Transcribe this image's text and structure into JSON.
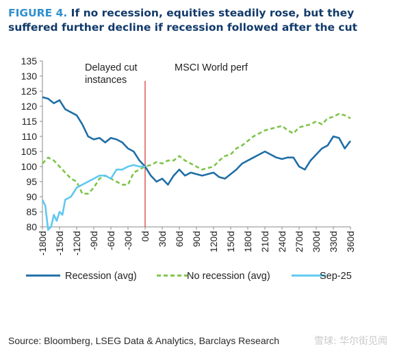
{
  "figure": {
    "label": "FIGURE 4.",
    "title": "If no recession, equities steadily rose, but they suffered further decline if recession followed after the cut"
  },
  "source": "Source: Bloomberg, LSEG Data & Analytics, Barclays Research",
  "watermark": "雪球: 华尔街见闻",
  "colors": {
    "recession": "#1f6ea6",
    "no_recession": "#7cc447",
    "sep25": "#5ec8f0",
    "cut_line": "#d62b2b"
  },
  "chart_data": {
    "type": "line",
    "title": "MSCI World perf",
    "annotation": "Delayed cut instances",
    "xlabel": "",
    "ylabel": "",
    "xlim": [
      -180,
      360
    ],
    "ylim": [
      80,
      135
    ],
    "yticks": [
      80,
      85,
      90,
      95,
      100,
      105,
      110,
      115,
      120,
      125,
      130,
      135
    ],
    "xticks": [
      -180,
      -150,
      -120,
      -90,
      -60,
      -30,
      0,
      30,
      60,
      90,
      120,
      150,
      180,
      210,
      240,
      270,
      300,
      330,
      360
    ],
    "xtick_labels": [
      "-180d",
      "-150d",
      "-120d",
      "-90d",
      "-60d",
      "-30d",
      "0d",
      "30d",
      "60d",
      "90d",
      "120d",
      "150d",
      "180d",
      "210d",
      "240d",
      "270d",
      "300d",
      "330d",
      "360d"
    ],
    "vline_x": 0,
    "grid": false,
    "legend": "bottom",
    "series": [
      {
        "name": "Recession (avg)",
        "style": "solid",
        "color": "#1f6ea6",
        "x": [
          -180,
          -170,
          -160,
          -150,
          -140,
          -130,
          -120,
          -110,
          -100,
          -90,
          -80,
          -70,
          -60,
          -50,
          -40,
          -30,
          -20,
          -10,
          0,
          10,
          20,
          30,
          40,
          50,
          60,
          70,
          80,
          90,
          100,
          110,
          120,
          130,
          140,
          150,
          160,
          170,
          180,
          190,
          200,
          210,
          220,
          230,
          240,
          250,
          260,
          270,
          280,
          290,
          300,
          310,
          320,
          330,
          340,
          350,
          360
        ],
        "y": [
          123,
          122.5,
          121,
          122,
          119,
          118,
          117,
          114,
          110,
          109,
          109.5,
          108,
          109.5,
          109,
          108,
          106,
          105,
          102,
          100,
          97,
          95,
          96,
          94,
          97,
          99,
          97,
          98,
          97.5,
          97,
          97.5,
          98,
          96.5,
          96,
          97.5,
          99,
          101,
          102,
          103,
          104,
          105,
          104,
          103,
          102.5,
          103,
          103,
          100,
          99,
          102,
          104,
          106,
          107,
          110,
          109.5,
          106,
          108.5
        ]
      },
      {
        "name": "No recession (avg)",
        "style": "dashed",
        "color": "#7cc447",
        "x": [
          -180,
          -170,
          -160,
          -150,
          -140,
          -130,
          -120,
          -110,
          -100,
          -90,
          -80,
          -70,
          -60,
          -50,
          -40,
          -30,
          -20,
          -10,
          0,
          10,
          20,
          30,
          40,
          50,
          60,
          70,
          80,
          90,
          100,
          110,
          120,
          130,
          140,
          150,
          160,
          170,
          180,
          190,
          200,
          210,
          220,
          230,
          240,
          250,
          260,
          270,
          280,
          290,
          300,
          310,
          320,
          330,
          340,
          350,
          360
        ],
        "y": [
          101,
          103,
          102,
          100,
          98,
          96,
          95,
          91,
          91,
          93,
          96,
          97,
          96,
          95,
          94,
          94,
          98,
          99,
          100,
          100.5,
          101.5,
          101,
          102,
          102,
          103.5,
          102,
          101,
          100,
          99,
          99.5,
          100,
          102,
          103.5,
          104,
          106,
          107,
          108.5,
          110,
          111,
          112,
          112.5,
          113,
          113.5,
          112,
          111,
          113,
          113.5,
          114,
          115,
          114,
          116,
          116.5,
          117.5,
          117,
          116
        ]
      },
      {
        "name": "Sep-25",
        "style": "solid",
        "color": "#5ec8f0",
        "x": [
          -180,
          -175,
          -170,
          -165,
          -160,
          -155,
          -150,
          -145,
          -140,
          -130,
          -120,
          -110,
          -100,
          -90,
          -80,
          -70,
          -60,
          -50,
          -40,
          -30,
          -20,
          -10,
          0
        ],
        "y": [
          89,
          87,
          79,
          80,
          84,
          82,
          85,
          84,
          89,
          90,
          93,
          94,
          95,
          96,
          97,
          97,
          96,
          99,
          99,
          100,
          100.5,
          100,
          100
        ]
      }
    ]
  }
}
